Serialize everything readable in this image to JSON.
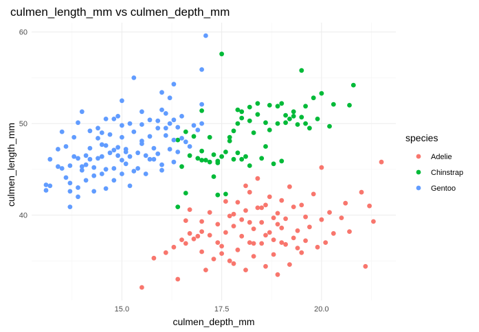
{
  "chart_data": {
    "type": "scatter",
    "title": "culmen_length_mm vs culmen_depth_mm",
    "xlabel": "culmen_depth_mm",
    "ylabel": "culmen_length_mm",
    "xlim": [
      13.1,
      21.5
    ],
    "ylim": [
      32.1,
      59.6
    ],
    "x_ticks": [
      15,
      17.5,
      20
    ],
    "x_tick_labels": [
      "15.0",
      "17.5",
      "20.0"
    ],
    "y_ticks": [
      40,
      50,
      60
    ],
    "y_tick_labels": [
      "40",
      "50",
      "60"
    ],
    "grid": true,
    "legend": {
      "title": "species",
      "placement": "right"
    },
    "series": [
      {
        "name": "Adelie",
        "color": "#F8766D",
        "points": [
          [
            15.5,
            32.1
          ],
          [
            16.4,
            33.0
          ],
          [
            15.8,
            35.3
          ],
          [
            16.1,
            35.9
          ],
          [
            16.3,
            36.5
          ],
          [
            16.6,
            36.9
          ],
          [
            16.8,
            37.4
          ],
          [
            17.0,
            36.0
          ],
          [
            17.0,
            38.2
          ],
          [
            17.1,
            34.0
          ],
          [
            17.2,
            37.8
          ],
          [
            17.3,
            35.2
          ],
          [
            17.4,
            39.0
          ],
          [
            17.5,
            36.6
          ],
          [
            17.6,
            38.1
          ],
          [
            17.7,
            35.0
          ],
          [
            17.8,
            38.8
          ],
          [
            17.8,
            40.1
          ],
          [
            17.9,
            36.2
          ],
          [
            17.9,
            41.4
          ],
          [
            18.0,
            37.7
          ],
          [
            18.0,
            39.5
          ],
          [
            18.1,
            34.0
          ],
          [
            18.1,
            40.5
          ],
          [
            18.2,
            37.0
          ],
          [
            18.2,
            42.5
          ],
          [
            18.3,
            38.5
          ],
          [
            18.3,
            35.5
          ],
          [
            18.4,
            40.8
          ],
          [
            18.4,
            44.0
          ],
          [
            18.5,
            36.9
          ],
          [
            18.5,
            39.2
          ],
          [
            18.6,
            41.1
          ],
          [
            18.6,
            37.8
          ],
          [
            18.7,
            38.1
          ],
          [
            18.7,
            42.0
          ],
          [
            18.8,
            39.7
          ],
          [
            18.8,
            35.7
          ],
          [
            18.9,
            40.2
          ],
          [
            18.9,
            33.5
          ],
          [
            19.0,
            38.6
          ],
          [
            19.0,
            41.6
          ],
          [
            19.1,
            36.8
          ],
          [
            19.1,
            39.6
          ],
          [
            19.2,
            43.1
          ],
          [
            19.3,
            37.5
          ],
          [
            19.3,
            40.9
          ],
          [
            19.4,
            38.3
          ],
          [
            19.5,
            35.9
          ],
          [
            19.5,
            41.1
          ],
          [
            19.6,
            39.8
          ],
          [
            19.6,
            37.2
          ],
          [
            19.7,
            38.7
          ],
          [
            19.8,
            42.3
          ],
          [
            19.9,
            36.5
          ],
          [
            20.0,
            39.5
          ],
          [
            20.0,
            45.2
          ],
          [
            20.1,
            37.0
          ],
          [
            20.2,
            40.3
          ],
          [
            20.3,
            38.0
          ],
          [
            20.5,
            39.7
          ],
          [
            20.6,
            41.3
          ],
          [
            20.7,
            38.2
          ],
          [
            21.0,
            42.5
          ],
          [
            21.1,
            34.4
          ],
          [
            21.2,
            41.0
          ],
          [
            21.3,
            39.3
          ],
          [
            21.5,
            45.8
          ],
          [
            16.7,
            38.0
          ],
          [
            17.0,
            39.3
          ],
          [
            17.2,
            40.3
          ],
          [
            17.6,
            41.5
          ],
          [
            18.1,
            43.2
          ],
          [
            18.5,
            40.8
          ],
          [
            19.0,
            37.0
          ],
          [
            17.4,
            37.0
          ],
          [
            16.9,
            37.7
          ],
          [
            17.5,
            35.8
          ],
          [
            18.3,
            36.9
          ],
          [
            18.8,
            37.3
          ],
          [
            19.4,
            36.4
          ],
          [
            17.8,
            34.7
          ],
          [
            18.6,
            34.4
          ],
          [
            19.2,
            34.6
          ],
          [
            16.5,
            37.3
          ],
          [
            16.6,
            39.4
          ],
          [
            16.7,
            40.6
          ],
          [
            17.7,
            39.9
          ],
          [
            18.2,
            39.2
          ],
          [
            18.9,
            39.0
          ]
        ]
      },
      {
        "name": "Chinstrap",
        "color": "#00BA38",
        "points": [
          [
            16.4,
            40.9
          ],
          [
            16.6,
            42.4
          ],
          [
            16.5,
            45.3
          ],
          [
            16.7,
            46.5
          ],
          [
            16.4,
            48.2
          ],
          [
            16.6,
            49.1
          ],
          [
            17.0,
            46.0
          ],
          [
            17.0,
            47.0
          ],
          [
            17.1,
            46.0
          ],
          [
            17.2,
            45.8
          ],
          [
            17.3,
            46.6
          ],
          [
            17.3,
            44.2
          ],
          [
            17.4,
            45.9
          ],
          [
            17.4,
            42.2
          ],
          [
            17.5,
            46.4
          ],
          [
            17.5,
            57.6
          ],
          [
            17.6,
            46.9
          ],
          [
            17.6,
            42.3
          ],
          [
            17.7,
            48.5
          ],
          [
            17.8,
            46.1
          ],
          [
            17.8,
            49.2
          ],
          [
            17.9,
            50.0
          ],
          [
            17.9,
            51.5
          ],
          [
            18.0,
            46.1
          ],
          [
            18.0,
            50.6
          ],
          [
            18.1,
            46.4
          ],
          [
            18.2,
            50.3
          ],
          [
            18.2,
            51.8
          ],
          [
            18.3,
            49.0
          ],
          [
            18.4,
            51.0
          ],
          [
            18.5,
            46.2
          ],
          [
            18.6,
            50.1
          ],
          [
            18.7,
            52.0
          ],
          [
            18.7,
            49.3
          ],
          [
            18.8,
            45.6
          ],
          [
            18.9,
            50.0
          ],
          [
            19.0,
            52.2
          ],
          [
            19.0,
            45.9
          ],
          [
            19.1,
            50.9
          ],
          [
            19.2,
            50.5
          ],
          [
            19.3,
            51.3
          ],
          [
            19.4,
            49.9
          ],
          [
            19.5,
            55.8
          ],
          [
            19.5,
            50.7
          ],
          [
            19.6,
            51.9
          ],
          [
            19.7,
            49.5
          ],
          [
            19.8,
            52.8
          ],
          [
            19.9,
            50.5
          ],
          [
            20.0,
            53.3
          ],
          [
            20.2,
            49.7
          ],
          [
            20.3,
            52.1
          ],
          [
            20.7,
            52.0
          ],
          [
            20.8,
            54.2
          ],
          [
            17.0,
            51.4
          ],
          [
            18.0,
            51.3
          ],
          [
            18.4,
            52.2
          ],
          [
            17.7,
            48.1
          ],
          [
            16.9,
            46.2
          ],
          [
            17.4,
            45.7
          ],
          [
            18.6,
            47.5
          ],
          [
            19.1,
            50.1
          ],
          [
            18.9,
            51.9
          ],
          [
            19.3,
            50.8
          ],
          [
            17.2,
            48.5
          ],
          [
            16.8,
            48.6
          ],
          [
            18.2,
            45.4
          ],
          [
            19.6,
            50.0
          ],
          [
            17.9,
            46.8
          ]
        ]
      },
      {
        "name": "Gentoo",
        "color": "#619CFF",
        "points": [
          [
            13.1,
            42.7
          ],
          [
            13.1,
            43.3
          ],
          [
            13.2,
            46.1
          ],
          [
            13.4,
            45.3
          ],
          [
            13.4,
            47.2
          ],
          [
            13.5,
            45.1
          ],
          [
            13.5,
            49.1
          ],
          [
            13.6,
            44.1
          ],
          [
            13.6,
            47.5
          ],
          [
            13.7,
            40.9
          ],
          [
            13.7,
            42.6
          ],
          [
            13.7,
            45.4
          ],
          [
            13.8,
            46.4
          ],
          [
            13.8,
            48.5
          ],
          [
            13.9,
            42.0
          ],
          [
            13.9,
            46.2
          ],
          [
            13.9,
            50.1
          ],
          [
            14.0,
            44.9
          ],
          [
            14.0,
            51.3
          ],
          [
            14.1,
            43.8
          ],
          [
            14.1,
            46.5
          ],
          [
            14.2,
            47.3
          ],
          [
            14.2,
            49.2
          ],
          [
            14.3,
            42.6
          ],
          [
            14.3,
            45.2
          ],
          [
            14.4,
            46.2
          ],
          [
            14.4,
            48.4
          ],
          [
            14.4,
            49.5
          ],
          [
            14.5,
            44.5
          ],
          [
            14.5,
            46.4
          ],
          [
            14.5,
            47.7
          ],
          [
            14.6,
            42.9
          ],
          [
            14.6,
            45.0
          ],
          [
            14.6,
            50.5
          ],
          [
            14.7,
            46.8
          ],
          [
            14.7,
            48.8
          ],
          [
            14.8,
            43.8
          ],
          [
            14.8,
            45.1
          ],
          [
            14.8,
            50.5
          ],
          [
            14.9,
            46.5
          ],
          [
            14.9,
            47.4
          ],
          [
            15.0,
            44.5
          ],
          [
            15.0,
            48.5
          ],
          [
            15.0,
            49.8
          ],
          [
            15.1,
            45.6
          ],
          [
            15.1,
            47.2
          ],
          [
            15.2,
            43.2
          ],
          [
            15.2,
            46.4
          ],
          [
            15.2,
            50.0
          ],
          [
            15.3,
            44.8
          ],
          [
            15.3,
            49.1
          ],
          [
            15.4,
            46.8
          ],
          [
            15.4,
            45.1
          ],
          [
            15.5,
            47.8
          ],
          [
            15.5,
            49.9
          ],
          [
            15.6,
            44.5
          ],
          [
            15.6,
            46.5
          ],
          [
            15.7,
            48.6
          ],
          [
            15.7,
            50.4
          ],
          [
            15.8,
            46.1
          ],
          [
            15.8,
            47.3
          ],
          [
            15.9,
            46.7
          ],
          [
            15.9,
            49.5
          ],
          [
            16.0,
            45.5
          ],
          [
            16.0,
            51.5
          ],
          [
            16.1,
            48.7
          ],
          [
            16.1,
            49.5
          ],
          [
            16.2,
            47.2
          ],
          [
            16.2,
            50.0
          ],
          [
            16.3,
            45.8
          ],
          [
            16.3,
            48.2
          ],
          [
            16.4,
            46.9
          ],
          [
            16.4,
            49.6
          ],
          [
            16.5,
            50.8
          ],
          [
            16.6,
            48.0
          ],
          [
            16.7,
            47.5
          ],
          [
            16.8,
            49.8
          ],
          [
            17.0,
            50.0
          ],
          [
            17.0,
            52.1
          ],
          [
            15.3,
            55.0
          ],
          [
            16.0,
            53.4
          ],
          [
            16.3,
            54.3
          ],
          [
            16.1,
            51.1
          ],
          [
            15.0,
            52.5
          ],
          [
            14.8,
            47.1
          ],
          [
            15.0,
            46.0
          ],
          [
            16.9,
            49.3
          ],
          [
            17.0,
            55.9
          ],
          [
            16.2,
            52.8
          ],
          [
            15.5,
            51.3
          ],
          [
            14.9,
            50.8
          ],
          [
            13.7,
            43.5
          ],
          [
            14.1,
            45.5
          ],
          [
            14.3,
            44.3
          ],
          [
            15.9,
            50.3
          ],
          [
            16.5,
            48.4
          ],
          [
            17.1,
            59.6
          ],
          [
            14.0,
            45.3
          ],
          [
            14.5,
            49.0
          ],
          [
            15.5,
            48.1
          ],
          [
            16.0,
            44.9
          ],
          [
            13.2,
            43.2
          ],
          [
            13.9,
            43.0
          ],
          [
            14.2,
            46.1
          ],
          [
            15.7,
            46.1
          ],
          [
            16.3,
            50.4
          ],
          [
            15.1,
            46.9
          ],
          [
            14.6,
            47.6
          ]
        ]
      }
    ]
  }
}
